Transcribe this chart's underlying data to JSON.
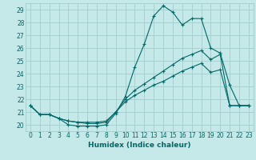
{
  "xlabel": "Humidex (Indice chaleur)",
  "background_color": "#c5e8e8",
  "grid_color": "#a8d0d0",
  "line_color": "#006868",
  "xlim": [
    -0.5,
    23.5
  ],
  "ylim": [
    19.5,
    29.5
  ],
  "yticks": [
    20,
    21,
    22,
    23,
    24,
    25,
    26,
    27,
    28,
    29
  ],
  "xticks": [
    0,
    1,
    2,
    3,
    4,
    5,
    6,
    7,
    8,
    9,
    10,
    11,
    12,
    13,
    14,
    15,
    16,
    17,
    18,
    19,
    20,
    21,
    22,
    23
  ],
  "line1": [
    21.5,
    20.8,
    20.8,
    20.5,
    20.0,
    19.9,
    19.9,
    19.9,
    20.0,
    20.9,
    22.2,
    24.5,
    26.3,
    28.5,
    29.3,
    28.8,
    27.8,
    28.3,
    28.3,
    26.0,
    25.6,
    23.1,
    21.5,
    21.5
  ],
  "line2": [
    21.5,
    20.8,
    20.8,
    20.5,
    20.3,
    20.2,
    20.2,
    20.2,
    20.3,
    21.0,
    22.0,
    22.7,
    23.2,
    23.7,
    24.2,
    24.7,
    25.2,
    25.5,
    25.8,
    25.1,
    25.5,
    21.5,
    21.5,
    21.5
  ],
  "line3": [
    21.5,
    20.8,
    20.8,
    20.5,
    20.3,
    20.2,
    20.1,
    20.1,
    20.2,
    21.0,
    21.8,
    22.3,
    22.7,
    23.1,
    23.4,
    23.8,
    24.2,
    24.5,
    24.8,
    24.1,
    24.3,
    21.5,
    21.5,
    21.5
  ]
}
